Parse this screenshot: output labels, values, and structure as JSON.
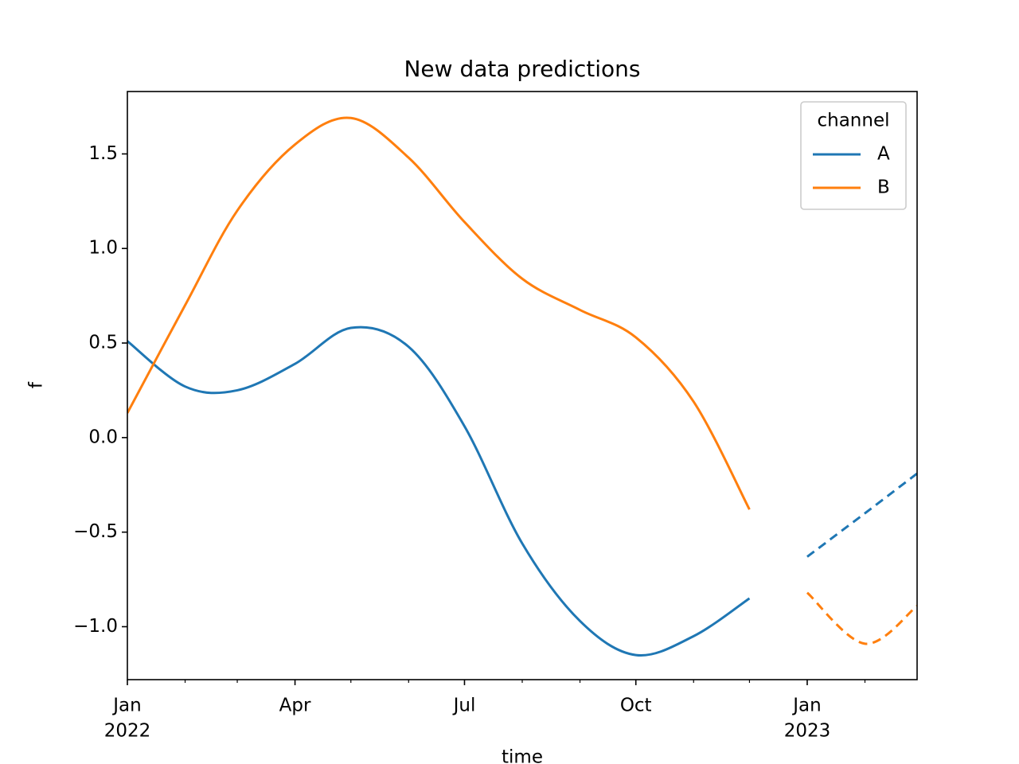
{
  "chart_data": {
    "type": "line",
    "title": "New data predictions",
    "x_label": "time",
    "y_label": "f",
    "x": [
      "2022-01",
      "2022-02",
      "2022-03",
      "2022-04",
      "2022-05",
      "2022-06",
      "2022-07",
      "2022-08",
      "2022-09",
      "2022-10",
      "2022-11",
      "2022-12",
      "2023-01",
      "2023-02",
      "2023-03"
    ],
    "series": [
      {
        "name": "A",
        "color": "#1f77b4",
        "values": [
          0.51,
          0.27,
          0.25,
          0.39,
          0.58,
          0.48,
          0.06,
          -0.56,
          -0.97,
          -1.15,
          -1.05,
          -0.85,
          null,
          null,
          null
        ],
        "predicted": [
          null,
          null,
          null,
          null,
          null,
          null,
          null,
          null,
          null,
          null,
          null,
          null,
          -0.63,
          -0.4,
          -0.19
        ]
      },
      {
        "name": "B",
        "color": "#ff7f0e",
        "values": [
          0.13,
          0.7,
          1.2,
          1.55,
          1.69,
          1.48,
          1.14,
          0.84,
          0.675,
          0.53,
          0.19,
          -0.38,
          null,
          null,
          null
        ],
        "predicted": [
          null,
          null,
          null,
          null,
          null,
          null,
          null,
          null,
          null,
          null,
          null,
          null,
          -0.82,
          -1.09,
          -0.89
        ]
      }
    ],
    "xlim": [
      "2022-01",
      "2023-03"
    ],
    "xticks": [
      {
        "value": "2022-01",
        "label": "Jan"
      },
      {
        "value": "2022-04",
        "label": "Apr"
      },
      {
        "value": "2022-07",
        "label": "Jul"
      },
      {
        "value": "2022-10",
        "label": "Oct"
      },
      {
        "value": "2023-01",
        "label": "Jan"
      }
    ],
    "xtick_years": [
      {
        "value": "2022-01",
        "label": "2022"
      },
      {
        "value": "2023-01",
        "label": "2023"
      }
    ],
    "xminorticks": [
      "2022-02",
      "2022-03",
      "2022-05",
      "2022-06",
      "2022-08",
      "2022-09",
      "2022-11",
      "2022-12",
      "2023-02"
    ],
    "ylim": [
      -1.28,
      1.83
    ],
    "yticks": [
      {
        "value": -1,
        "label": "−1.0"
      },
      {
        "value": -0.5,
        "label": "−0.5"
      },
      {
        "value": 0,
        "label": "0.0"
      },
      0.5,
      {
        "value": 1,
        "label": "1.0"
      },
      {
        "value": 1.5,
        "label": "1.5"
      }
    ],
    "legend_title": "channel",
    "legend_position": "upper right",
    "grid": false
  }
}
